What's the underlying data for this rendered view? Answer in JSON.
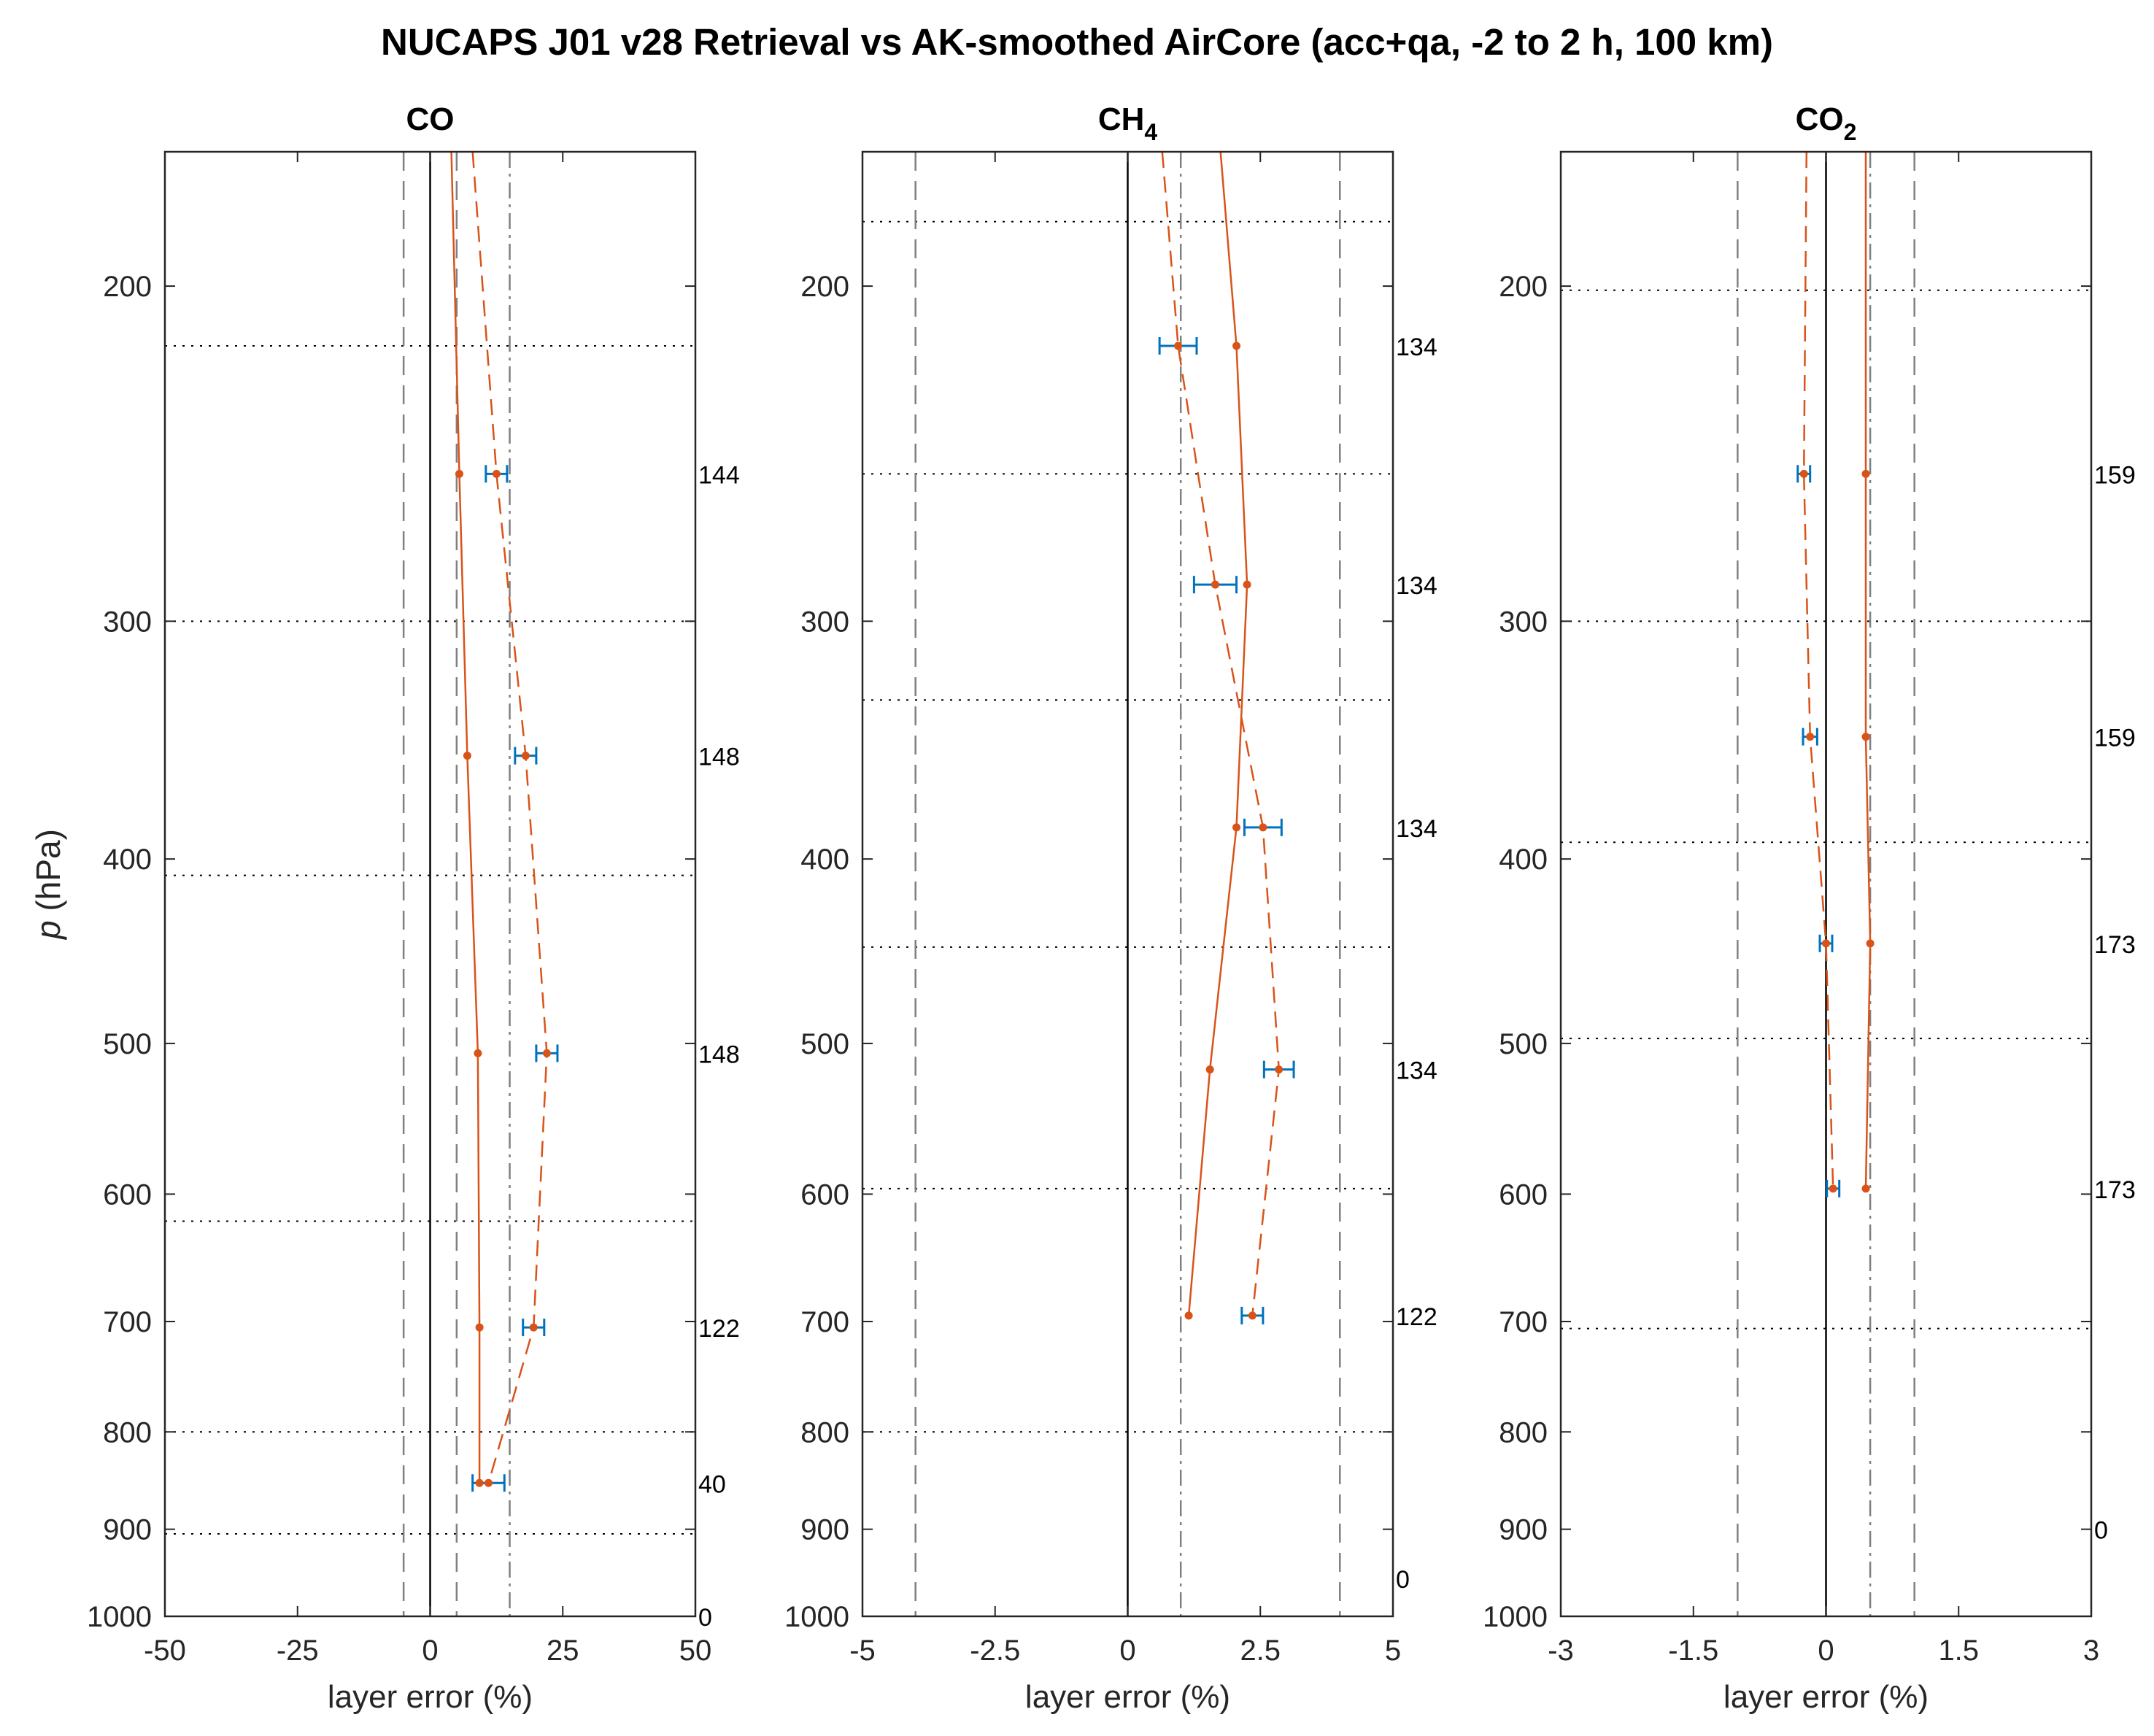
{
  "title": "NUCAPS J01 v28 Retrieval vs AK-smoothed AirCore (acc+qa, -2 to 2 h, 100 km)",
  "colors": {
    "series": "#d95319",
    "errorbar": "#0072bd",
    "axis": "#262626",
    "refline": "#808080",
    "layerline": "#000000"
  },
  "chart_data": [
    {
      "type": "line",
      "title": "CO",
      "title_base": "CO",
      "title_sub": "",
      "xlabel": "layer error (%)",
      "ylabel_italic": "p",
      "ylabel_rest": " (hPa)",
      "xlim": [
        -50,
        50
      ],
      "ylim": [
        1000,
        170
      ],
      "yscale": "log",
      "xticks": [
        -50,
        -25,
        0,
        25,
        50
      ],
      "xtick_labels": [
        "-50",
        "-25",
        "0",
        "25",
        "50"
      ],
      "yticks": [
        200,
        300,
        400,
        500,
        600,
        700,
        800,
        900,
        1000
      ],
      "ytick_labels": [
        "200",
        "300",
        "400",
        "500",
        "600",
        "700",
        "800",
        "900",
        "1000"
      ],
      "dashed_lines": [
        -5,
        5
      ],
      "dashdot_lines": [
        15
      ],
      "zero_line": 0,
      "layer_bounds": [
        215,
        300,
        408,
        620,
        800,
        905
      ],
      "series": [
        {
          "name": "solid",
          "style": "solid",
          "y": [
            170,
            251,
            353,
            506,
            705,
            851
          ],
          "x": [
            4,
            5.5,
            7,
            9,
            9.3,
            9.3
          ]
        },
        {
          "name": "dashed",
          "style": "dashed",
          "y": [
            170,
            251,
            353,
            506,
            705,
            851
          ],
          "x": [
            8,
            12.5,
            18,
            22,
            19.5,
            11
          ],
          "err": [
            null,
            2,
            2,
            2,
            2,
            3
          ]
        }
      ],
      "counts": [
        {
          "p": 251,
          "label": "144"
        },
        {
          "p": 353,
          "label": "148"
        },
        {
          "p": 506,
          "label": "148"
        },
        {
          "p": 705,
          "label": "122"
        },
        {
          "p": 851,
          "label": "40"
        },
        {
          "p": 1000,
          "label": "0"
        }
      ]
    },
    {
      "type": "line",
      "title": "CH4",
      "title_base": "CH",
      "title_sub": "4",
      "xlabel": "layer error (%)",
      "ylabel_italic": "",
      "ylabel_rest": "",
      "xlim": [
        -5,
        5
      ],
      "ylim": [
        1000,
        170
      ],
      "yscale": "log",
      "xticks": [
        -5,
        -2.5,
        0,
        2.5,
        5
      ],
      "xtick_labels": [
        "-5",
        "-2.5",
        "0",
        "2.5",
        "5"
      ],
      "yticks": [
        200,
        300,
        400,
        500,
        600,
        700,
        800,
        900,
        1000
      ],
      "ytick_labels": [
        "200",
        "300",
        "400",
        "500",
        "600",
        "700",
        "800",
        "900",
        "1000"
      ],
      "dashed_lines": [
        -4,
        4
      ],
      "dashdot_lines": [
        1
      ],
      "zero_line": 0,
      "layer_bounds": [
        185,
        251,
        330,
        445,
        596,
        800
      ],
      "series": [
        {
          "name": "solid",
          "style": "solid",
          "y": [
            170,
            215,
            287,
            385,
            516,
            695
          ],
          "x": [
            1.75,
            2.05,
            2.25,
            2.05,
            1.55,
            1.15
          ]
        },
        {
          "name": "dashed",
          "style": "dashed",
          "y": [
            170,
            215,
            287,
            385,
            516,
            695
          ],
          "x": [
            0.65,
            0.95,
            1.65,
            2.55,
            2.85,
            2.35
          ],
          "err": [
            null,
            0.35,
            0.4,
            0.35,
            0.28,
            0.2
          ]
        }
      ],
      "counts": [
        {
          "p": 215,
          "label": "134"
        },
        {
          "p": 287,
          "label": "134"
        },
        {
          "p": 385,
          "label": "134"
        },
        {
          "p": 516,
          "label": "134"
        },
        {
          "p": 695,
          "label": "122"
        },
        {
          "p": 955,
          "label": "0"
        }
      ]
    },
    {
      "type": "line",
      "title": "CO2",
      "title_base": "CO",
      "title_sub": "2",
      "xlabel": "layer error (%)",
      "ylabel_italic": "",
      "ylabel_rest": "",
      "xlim": [
        -3,
        3
      ],
      "ylim": [
        1000,
        170
      ],
      "yscale": "log",
      "xticks": [
        -3,
        -1.5,
        0,
        1.5,
        3
      ],
      "xtick_labels": [
        "-3",
        "-1.5",
        "0",
        "1.5",
        "3"
      ],
      "yticks": [
        200,
        300,
        400,
        500,
        600,
        700,
        800,
        900,
        1000
      ],
      "ytick_labels": [
        "200",
        "300",
        "400",
        "500",
        "600",
        "700",
        "800",
        "900",
        "1000"
      ],
      "dashed_lines": [
        -1,
        1
      ],
      "dashdot_lines": [
        0.5
      ],
      "zero_line": 0,
      "layer_bounds": [
        201,
        300,
        392,
        497,
        706
      ],
      "series": [
        {
          "name": "solid",
          "style": "solid",
          "y": [
            170,
            251,
            345,
            443,
            596
          ],
          "x": [
            0.45,
            0.45,
            0.45,
            0.5,
            0.45
          ]
        },
        {
          "name": "dashed",
          "style": "dashed",
          "y": [
            170,
            251,
            345,
            443,
            596
          ],
          "x": [
            -0.22,
            -0.25,
            -0.18,
            0.0,
            0.08
          ],
          "err": [
            null,
            0.07,
            0.08,
            0.07,
            0.07
          ]
        }
      ],
      "counts": [
        {
          "p": 251,
          "label": "159"
        },
        {
          "p": 345,
          "label": "159"
        },
        {
          "p": 443,
          "label": "173"
        },
        {
          "p": 596,
          "label": "173"
        },
        {
          "p": 900,
          "label": "0"
        }
      ]
    }
  ]
}
